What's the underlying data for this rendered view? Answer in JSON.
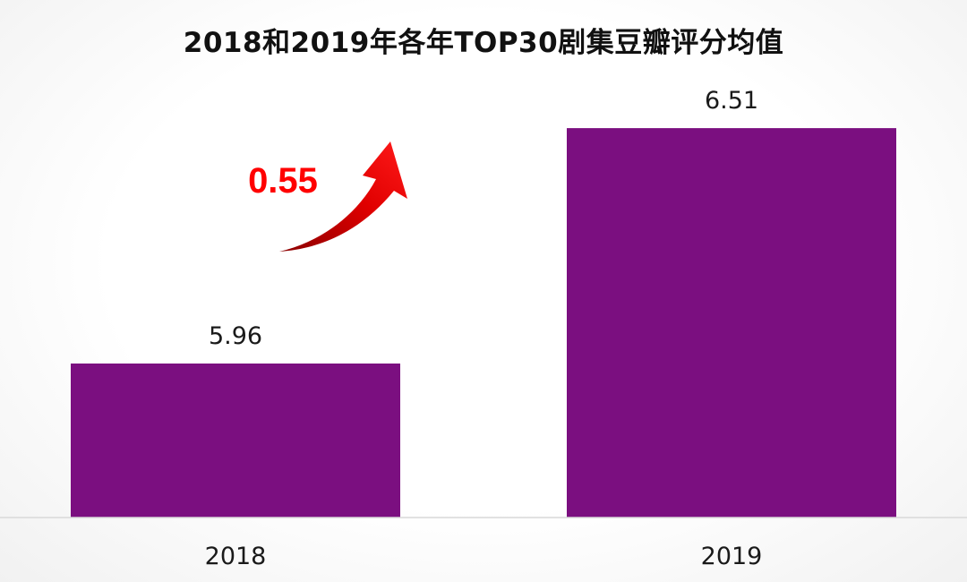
{
  "chart_data": {
    "type": "bar",
    "title": "2018和2019年各年TOP30剧集豆瓣评分均值",
    "xlabel": "",
    "ylabel": "",
    "categories": [
      "2018",
      "2019"
    ],
    "values": [
      5.96,
      6.51
    ],
    "value_labels": [
      "5.96",
      "6.51"
    ],
    "grid": false,
    "legend": "none",
    "bar_color": "#7B0F80",
    "annotation": {
      "text": "0.55",
      "color": "#FF0000",
      "shape": "curved-up-arrow"
    }
  }
}
